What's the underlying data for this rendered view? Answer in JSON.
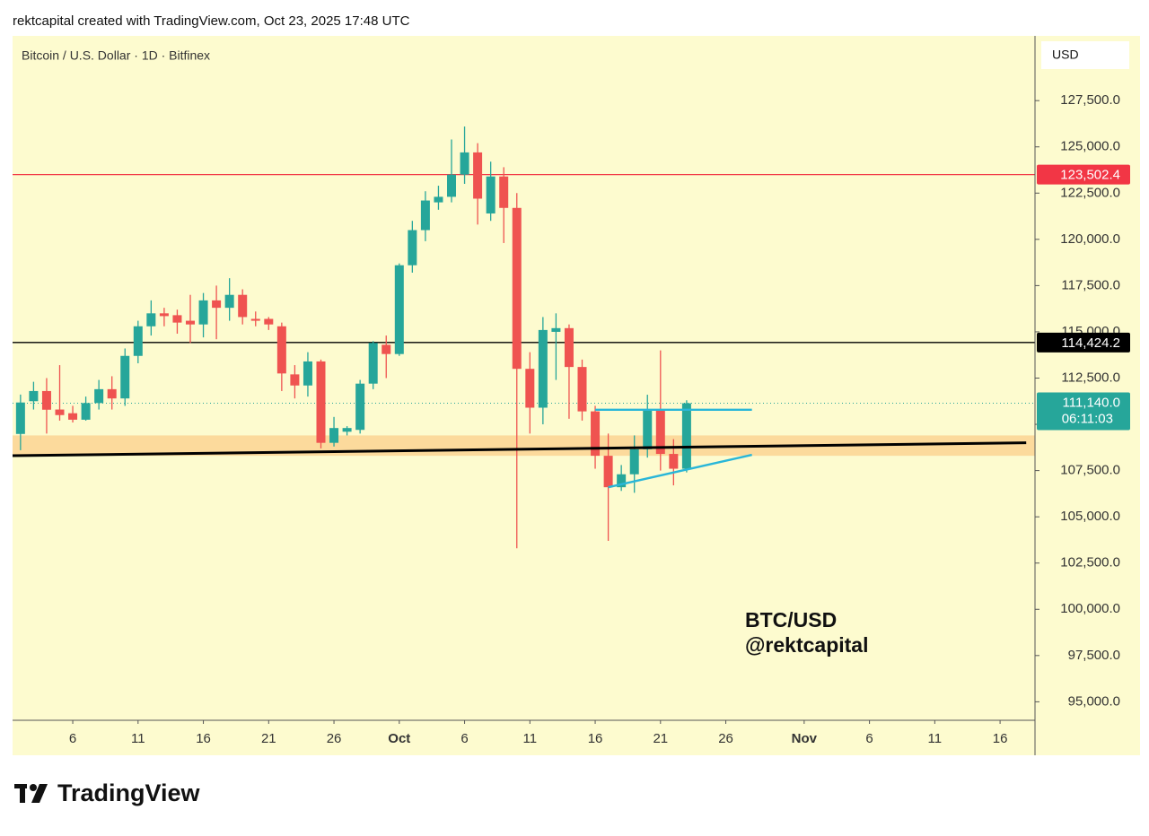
{
  "header": "rektcapital created with TradingView.com, Oct 23, 2025 17:48 UTC",
  "footer_logo": "TradingView",
  "chart_data": {
    "type": "candlestick",
    "title": "Bitcoin / U.S. Dollar · 1D · Bitfinex",
    "currency": "USD",
    "watermark": [
      "BTC/USD",
      "@rektcapital"
    ],
    "up_color": "#26a69a",
    "down_color": "#ef5350",
    "x": [
      "2025-09-02",
      "2025-09-03",
      "2025-09-04",
      "2025-09-05",
      "2025-09-06",
      "2025-09-07",
      "2025-09-08",
      "2025-09-09",
      "2025-09-10",
      "2025-09-11",
      "2025-09-12",
      "2025-09-13",
      "2025-09-14",
      "2025-09-15",
      "2025-09-16",
      "2025-09-17",
      "2025-09-18",
      "2025-09-19",
      "2025-09-20",
      "2025-09-21",
      "2025-09-22",
      "2025-09-23",
      "2025-09-24",
      "2025-09-25",
      "2025-09-26",
      "2025-09-27",
      "2025-09-28",
      "2025-09-29",
      "2025-09-30",
      "2025-10-01",
      "2025-10-02",
      "2025-10-03",
      "2025-10-04",
      "2025-10-05",
      "2025-10-06",
      "2025-10-07",
      "2025-10-08",
      "2025-10-09",
      "2025-10-10",
      "2025-10-11",
      "2025-10-12",
      "2025-10-13",
      "2025-10-14",
      "2025-10-15",
      "2025-10-16",
      "2025-10-17",
      "2025-10-18",
      "2025-10-19",
      "2025-10-20",
      "2025-10-21",
      "2025-10-22",
      "2025-10-23"
    ],
    "open": [
      109480,
      111250,
      111800,
      110800,
      110600,
      110250,
      111150,
      111900,
      111400,
      113700,
      115300,
      116000,
      115900,
      115600,
      115400,
      116700,
      116300,
      117000,
      115700,
      115700,
      115300,
      112700,
      112100,
      113400,
      109000,
      109600,
      109700,
      112200,
      114300,
      113800,
      118600,
      120500,
      122000,
      122300,
      123500,
      124700,
      121400,
      123400,
      121700,
      113000,
      110900,
      115000,
      115200,
      113100,
      110700,
      108300,
      106600,
      107300,
      108650,
      110800,
      108400,
      107600
    ],
    "high": [
      111610,
      112300,
      112500,
      113200,
      111000,
      111500,
      112400,
      112600,
      114100,
      115600,
      116700,
      116300,
      116200,
      117000,
      117100,
      117500,
      117900,
      117300,
      116100,
      115800,
      115500,
      113200,
      113900,
      113500,
      110400,
      109900,
      112400,
      114500,
      114800,
      118700,
      121000,
      122600,
      122900,
      125400,
      126100,
      125200,
      124200,
      123900,
      122500,
      113900,
      115800,
      116000,
      115400,
      113500,
      111000,
      109500,
      107800,
      109400,
      111600,
      114000,
      109200,
      111300
    ],
    "low": [
      108600,
      110800,
      109500,
      110200,
      110100,
      110200,
      110800,
      110800,
      111000,
      113300,
      114800,
      115300,
      114900,
      114400,
      114700,
      114600,
      115600,
      115400,
      115300,
      115100,
      111800,
      111400,
      111500,
      108700,
      108800,
      109400,
      109500,
      111900,
      112500,
      113700,
      118200,
      119900,
      121600,
      122000,
      123000,
      120800,
      121000,
      119800,
      103300,
      109500,
      110000,
      112400,
      110300,
      110200,
      107600,
      103700,
      106400,
      106300,
      108200,
      107500,
      106700,
      107400
    ],
    "close": [
      111180,
      111800,
      110790,
      110500,
      110250,
      111150,
      111900,
      111400,
      113700,
      115300,
      116000,
      115850,
      115500,
      115400,
      116700,
      116300,
      117000,
      115800,
      115600,
      115400,
      112750,
      112100,
      113400,
      109000,
      109800,
      109800,
      112200,
      114400,
      113800,
      118600,
      120500,
      122100,
      122300,
      123500,
      124700,
      122200,
      123400,
      121700,
      113000,
      110900,
      115100,
      115200,
      113100,
      110700,
      108300,
      106600,
      107300,
      108650,
      110800,
      108400,
      107600,
      111140
    ],
    "xlim": [
      "2025-09-01",
      "2025-11-18"
    ],
    "xticks": [
      {
        "value": "2025-09-06",
        "label": "6"
      },
      {
        "value": "2025-09-11",
        "label": "11"
      },
      {
        "value": "2025-09-16",
        "label": "16"
      },
      {
        "value": "2025-09-21",
        "label": "21"
      },
      {
        "value": "2025-09-26",
        "label": "26"
      },
      {
        "value": "2025-10-01",
        "label": "Oct"
      },
      {
        "value": "2025-10-06",
        "label": "6"
      },
      {
        "value": "2025-10-11",
        "label": "11"
      },
      {
        "value": "2025-10-16",
        "label": "16"
      },
      {
        "value": "2025-10-21",
        "label": "21"
      },
      {
        "value": "2025-10-26",
        "label": "26"
      },
      {
        "value": "2025-11-01",
        "label": "Nov"
      },
      {
        "value": "2025-11-06",
        "label": "6"
      },
      {
        "value": "2025-11-11",
        "label": "11"
      },
      {
        "value": "2025-11-16",
        "label": "16"
      }
    ],
    "ylim": [
      94000,
      131000
    ],
    "yticks": [
      {
        "value": 95000,
        "label": "95,000.0"
      },
      {
        "value": 97500,
        "label": "97,500.0"
      },
      {
        "value": 100000,
        "label": "100,000.0"
      },
      {
        "value": 102500,
        "label": "102,500.0"
      },
      {
        "value": 105000,
        "label": "105,000.0"
      },
      {
        "value": 107500,
        "label": "107,500.0"
      },
      {
        "value": 110000,
        "label": "110,000.0"
      },
      {
        "value": 112500,
        "label": "112,500.0"
      },
      {
        "value": 115000,
        "label": "115,000.0"
      },
      {
        "value": 117500,
        "label": "117,500.0"
      },
      {
        "value": 120000,
        "label": "120,000.0"
      },
      {
        "value": 122500,
        "label": "122,500.0"
      },
      {
        "value": 125000,
        "label": "125,000.0"
      },
      {
        "value": 127500,
        "label": "127,500.0"
      }
    ],
    "levels": [
      {
        "value": 123502.4,
        "label": "123,502.4",
        "color": "#f23645"
      },
      {
        "value": 114424.2,
        "label": "114,424.2",
        "color": "#000000"
      }
    ],
    "last_price": {
      "value": 111140.0,
      "label": "111,140.0",
      "countdown": "06:11:03",
      "color": "#26a69a"
    },
    "zone": {
      "low": 108300,
      "high": 109400,
      "color": "#fbd393"
    },
    "trendlines": [
      {
        "color": "#000000",
        "points": [
          [
            "2025-09-01",
            108300
          ],
          [
            "2025-11-18",
            109000
          ]
        ]
      },
      {
        "color": "#29b6d8",
        "points": [
          [
            "2025-10-16",
            110790
          ],
          [
            "2025-10-28",
            110790
          ]
        ]
      },
      {
        "color": "#29b6d8",
        "points": [
          [
            "2025-10-17",
            106600
          ],
          [
            "2025-10-28",
            108350
          ]
        ]
      }
    ]
  }
}
